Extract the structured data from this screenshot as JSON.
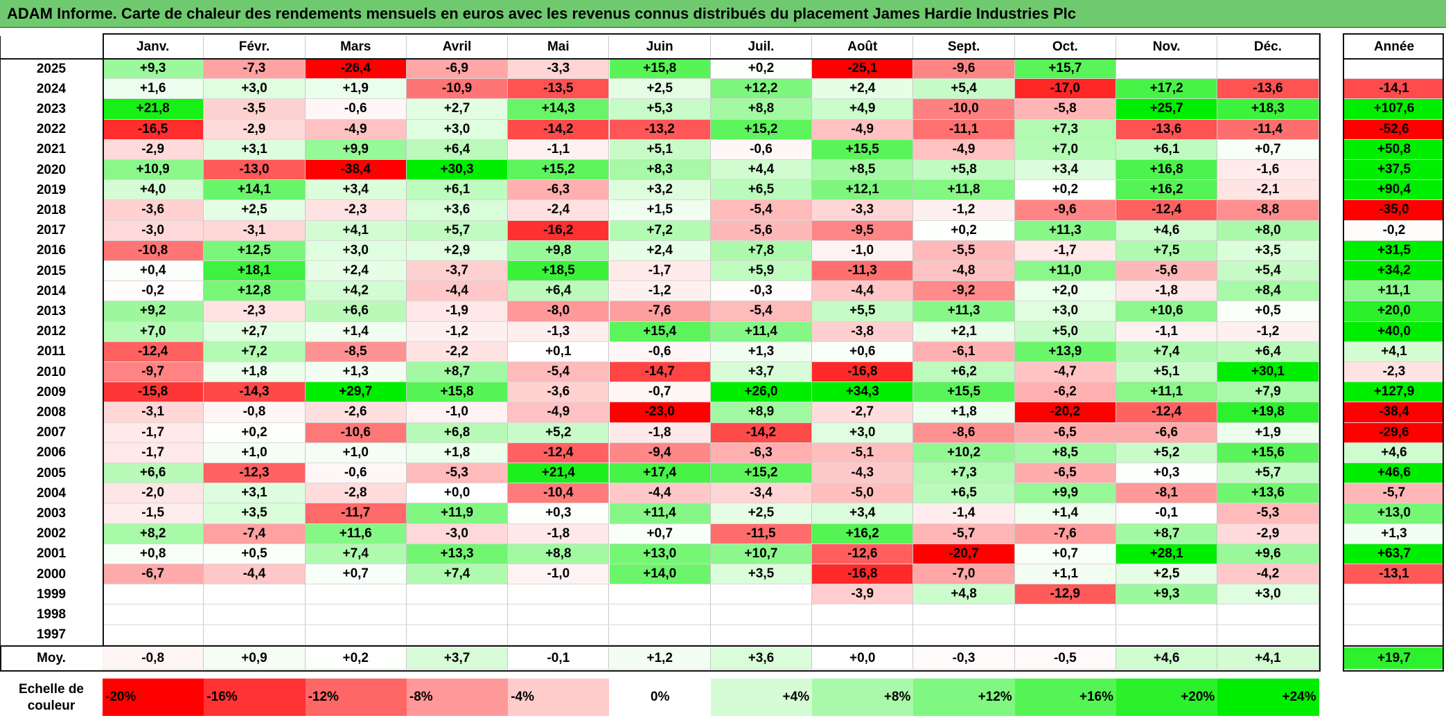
{
  "title": "ADAM Informe. Carte de chaleur des rendements mensuels en euros avec les revenus connus distribués du placement James Hardie Industries Plc",
  "colors": {
    "title_bg": "#6fca6f",
    "neg_max": "#ff0000",
    "pos_max": "#00ee00",
    "neutral": "#ffffff"
  },
  "chart_data": {
    "type": "heatmap",
    "title": "ADAM Informe. Carte de chaleur des rendements mensuels en euros avec les revenus connus distribués du placement James Hardie Industries Plc",
    "months": [
      "Janv.",
      "Févr.",
      "Mars",
      "Avril",
      "Mai",
      "Juin",
      "Juil.",
      "Août",
      "Sept.",
      "Oct.",
      "Nov.",
      "Déc."
    ],
    "annual_header": "Année",
    "rows": [
      {
        "year": "2025",
        "values": [
          "+9,3",
          "-7,3",
          "-26,4",
          "-6,9",
          "-3,3",
          "+15,8",
          "+0,2",
          "-25,1",
          "-9,6",
          "+15,7",
          "",
          ""
        ],
        "annual": ""
      },
      {
        "year": "2024",
        "values": [
          "+1,6",
          "+3,0",
          "+1,9",
          "-10,9",
          "-13,5",
          "+2,5",
          "+12,2",
          "+2,4",
          "+5,4",
          "-17,0",
          "+17,2",
          "-13,6"
        ],
        "annual": "-14,1"
      },
      {
        "year": "2023",
        "values": [
          "+21,8",
          "-3,5",
          "-0,6",
          "+2,7",
          "+14,3",
          "+5,3",
          "+8,8",
          "+4,9",
          "-10,0",
          "-5,8",
          "+25,7",
          "+18,3"
        ],
        "annual": "+107,6"
      },
      {
        "year": "2022",
        "values": [
          "-16,5",
          "-2,9",
          "-4,9",
          "+3,0",
          "-14,2",
          "-13,2",
          "+15,2",
          "-4,9",
          "-11,1",
          "+7,3",
          "-13,6",
          "-11,4"
        ],
        "annual": "-52,6"
      },
      {
        "year": "2021",
        "values": [
          "-2,9",
          "+3,1",
          "+9,9",
          "+6,4",
          "-1,1",
          "+5,1",
          "-0,6",
          "+15,5",
          "-4,9",
          "+7,0",
          "+6,1",
          "+0,7"
        ],
        "annual": "+50,8"
      },
      {
        "year": "2020",
        "values": [
          "+10,9",
          "-13,0",
          "-38,4",
          "+30,3",
          "+15,2",
          "+8,3",
          "+4,4",
          "+8,5",
          "+5,8",
          "+3,4",
          "+16,8",
          "-1,6"
        ],
        "annual": "+37,5"
      },
      {
        "year": "2019",
        "values": [
          "+4,0",
          "+14,1",
          "+3,4",
          "+6,1",
          "-6,3",
          "+3,2",
          "+6,5",
          "+12,1",
          "+11,8",
          "+0,2",
          "+16,2",
          "-2,1"
        ],
        "annual": "+90,4"
      },
      {
        "year": "2018",
        "values": [
          "-3,6",
          "+2,5",
          "-2,3",
          "+3,6",
          "-2,4",
          "+1,5",
          "-5,4",
          "-3,3",
          "-1,2",
          "-9,6",
          "-12,4",
          "-8,8"
        ],
        "annual": "-35,0"
      },
      {
        "year": "2017",
        "values": [
          "-3,0",
          "-3,1",
          "+4,1",
          "+5,7",
          "-16,2",
          "+7,2",
          "-5,6",
          "-9,5",
          "+0,2",
          "+11,3",
          "+4,6",
          "+8,0"
        ],
        "annual": "-0,2"
      },
      {
        "year": "2016",
        "values": [
          "-10,8",
          "+12,5",
          "+3,0",
          "+2,9",
          "+9,8",
          "+2,4",
          "+7,8",
          "-1,0",
          "-5,5",
          "-1,7",
          "+7,5",
          "+3,5"
        ],
        "annual": "+31,5"
      },
      {
        "year": "2015",
        "values": [
          "+0,4",
          "+18,1",
          "+2,4",
          "-3,7",
          "+18,5",
          "-1,7",
          "+5,9",
          "-11,3",
          "-4,8",
          "+11,0",
          "-5,6",
          "+5,4"
        ],
        "annual": "+34,2"
      },
      {
        "year": "2014",
        "values": [
          "-0,2",
          "+12,8",
          "+4,2",
          "-4,4",
          "+6,4",
          "-1,2",
          "-0,3",
          "-4,4",
          "-9,2",
          "+2,0",
          "-1,8",
          "+8,4"
        ],
        "annual": "+11,1"
      },
      {
        "year": "2013",
        "values": [
          "+9,2",
          "-2,3",
          "+6,6",
          "-1,9",
          "-8,0",
          "-7,6",
          "-5,4",
          "+5,5",
          "+11,3",
          "+3,0",
          "+10,6",
          "+0,5"
        ],
        "annual": "+20,0"
      },
      {
        "year": "2012",
        "values": [
          "+7,0",
          "+2,7",
          "+1,4",
          "-1,2",
          "-1,3",
          "+15,4",
          "+11,4",
          "-3,8",
          "+2,1",
          "+5,0",
          "-1,1",
          "-1,2"
        ],
        "annual": "+40,0"
      },
      {
        "year": "2011",
        "values": [
          "-12,4",
          "+7,2",
          "-8,5",
          "-2,2",
          "+0,1",
          "-0,6",
          "+1,3",
          "+0,6",
          "-6,1",
          "+13,9",
          "+7,4",
          "+6,4"
        ],
        "annual": "+4,1"
      },
      {
        "year": "2010",
        "values": [
          "-9,7",
          "+1,8",
          "+1,3",
          "+8,7",
          "-5,4",
          "-14,7",
          "+3,7",
          "-16,8",
          "+6,2",
          "-4,7",
          "+5,1",
          "+30,1"
        ],
        "annual": "-2,3"
      },
      {
        "year": "2009",
        "values": [
          "-15,8",
          "-14,3",
          "+29,7",
          "+15,8",
          "-3,6",
          "-0,7",
          "+26,0",
          "+34,3",
          "+15,5",
          "-6,2",
          "+11,1",
          "+7,9"
        ],
        "annual": "+127,9"
      },
      {
        "year": "2008",
        "values": [
          "-3,1",
          "-0,8",
          "-2,6",
          "-1,0",
          "-4,9",
          "-23,0",
          "+8,9",
          "-2,7",
          "+1,8",
          "-20,2",
          "-12,4",
          "+19,8"
        ],
        "annual": "-38,4"
      },
      {
        "year": "2007",
        "values": [
          "-1,7",
          "+0,2",
          "-10,6",
          "+6,8",
          "+5,2",
          "-1,8",
          "-14,2",
          "+3,0",
          "-8,6",
          "-6,5",
          "-6,6",
          "+1,9"
        ],
        "annual": "-29,6"
      },
      {
        "year": "2006",
        "values": [
          "-1,7",
          "+1,0",
          "+1,0",
          "+1,8",
          "-12,4",
          "-9,4",
          "-6,3",
          "-5,1",
          "+10,2",
          "+8,5",
          "+5,2",
          "+15,6"
        ],
        "annual": "+4,6"
      },
      {
        "year": "2005",
        "values": [
          "+6,6",
          "-12,3",
          "-0,6",
          "-5,3",
          "+21,4",
          "+17,4",
          "+15,2",
          "-4,3",
          "+7,3",
          "-6,5",
          "+0,3",
          "+5,7"
        ],
        "annual": "+46,6"
      },
      {
        "year": "2004",
        "values": [
          "-2,0",
          "+3,1",
          "-2,8",
          "+0,0",
          "-10,4",
          "-4,4",
          "-3,4",
          "-5,0",
          "+6,5",
          "+9,9",
          "-8,1",
          "+13,6"
        ],
        "annual": "-5,7"
      },
      {
        "year": "2003",
        "values": [
          "-1,5",
          "+3,5",
          "-11,7",
          "+11,9",
          "+0,3",
          "+11,4",
          "+2,5",
          "+3,4",
          "-1,4",
          "+1,4",
          "-0,1",
          "-5,3"
        ],
        "annual": "+13,0"
      },
      {
        "year": "2002",
        "values": [
          "+8,2",
          "-7,4",
          "+11,6",
          "-3,0",
          "-1,8",
          "+0,7",
          "-11,5",
          "+16,2",
          "-5,7",
          "-7,6",
          "+8,7",
          "-2,9"
        ],
        "annual": "+1,3"
      },
      {
        "year": "2001",
        "values": [
          "+0,8",
          "+0,5",
          "+7,4",
          "+13,3",
          "+8,8",
          "+13,0",
          "+10,7",
          "-12,6",
          "-20,7",
          "+0,7",
          "+28,1",
          "+9,6"
        ],
        "annual": "+63,7"
      },
      {
        "year": "2000",
        "values": [
          "-6,7",
          "-4,4",
          "+0,7",
          "+7,4",
          "-1,0",
          "+14,0",
          "+3,5",
          "-16,8",
          "-7,0",
          "+1,1",
          "+2,5",
          "-4,2"
        ],
        "annual": "-13,1"
      },
      {
        "year": "1999",
        "values": [
          "",
          "",
          "",
          "",
          "",
          "",
          "",
          "-3,9",
          "+4,8",
          "-12,9",
          "+9,3",
          "+3,0"
        ],
        "annual": ""
      },
      {
        "year": "1998",
        "values": [
          "",
          "",
          "",
          "",
          "",
          "",
          "",
          "",
          "",
          "",
          "",
          ""
        ],
        "annual": ""
      },
      {
        "year": "1997",
        "values": [
          "",
          "",
          "",
          "",
          "",
          "",
          "",
          "",
          "",
          "",
          "",
          ""
        ],
        "annual": ""
      }
    ],
    "average": {
      "label": "Moy.",
      "values": [
        "-0,8",
        "+0,9",
        "+0,2",
        "+3,7",
        "-0,1",
        "+1,2",
        "+3,6",
        "+0,0",
        "-0,3",
        "-0,5",
        "+4,6",
        "+4,1"
      ],
      "annual": "+19,7"
    },
    "scale": {
      "label_line1": "Echelle de",
      "label_line2": "couleur",
      "steps": [
        "-20%",
        "-16%",
        "-12%",
        "-8%",
        "-4%",
        "0%",
        "+4%",
        "+8%",
        "+12%",
        "+16%",
        "+20%",
        "+24%"
      ]
    }
  }
}
